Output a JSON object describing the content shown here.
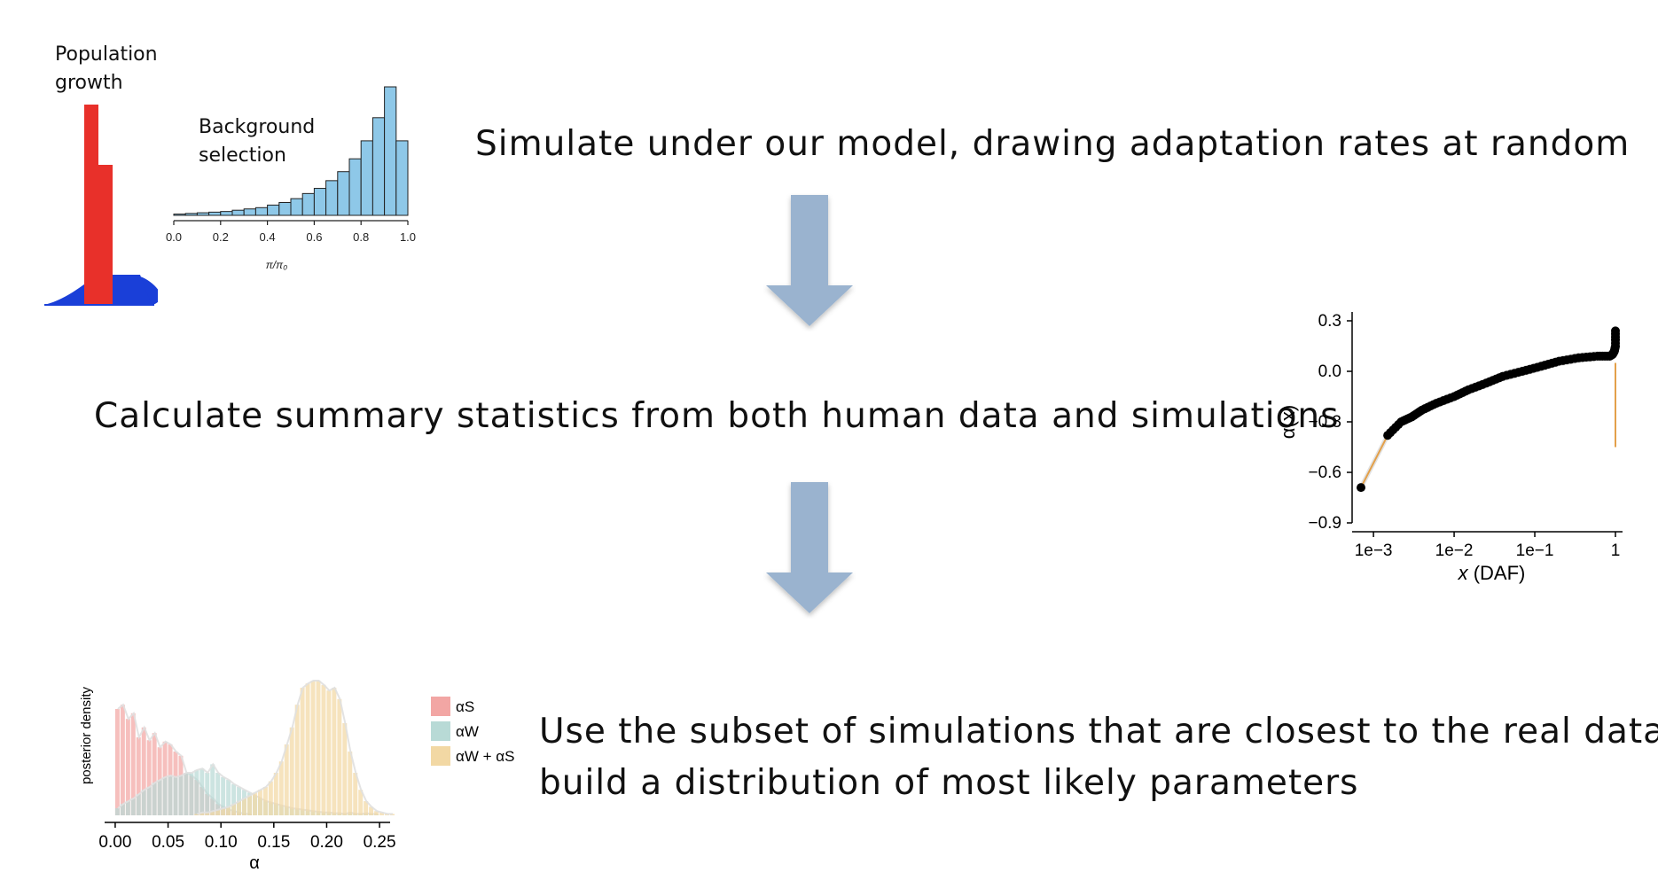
{
  "steps": {
    "simulate": "Simulate under our model, drawing adaptation rates at random",
    "calculate": "Calculate summary statistics from both human data and simulations",
    "subset_line1": "Use the subset of simulations that are closest to the real data to",
    "subset_line2": "build a distribution of most likely parameters"
  },
  "population_growth": {
    "label_line1": "Population",
    "label_line2": "growth",
    "colors": {
      "bar": "#e8302a",
      "base": "#1a3fd8"
    }
  },
  "colors": {
    "arrow": "#9ab3cf"
  },
  "chart_data": [
    {
      "type": "bar",
      "name_label_line1": "Background",
      "name_label_line2": "selection",
      "xlabel": "π/π₀",
      "xlim": [
        0.0,
        1.0
      ],
      "xticks": [
        "0.0",
        "0.2",
        "0.4",
        "0.6",
        "0.8",
        "1.0"
      ],
      "bin_width": 0.05,
      "values": [
        0.01,
        0.015,
        0.02,
        0.025,
        0.03,
        0.04,
        0.05,
        0.06,
        0.08,
        0.1,
        0.13,
        0.17,
        0.21,
        0.27,
        0.34,
        0.44,
        0.58,
        0.76,
        1.0,
        0.58
      ],
      "color": "#8ec8e8"
    },
    {
      "type": "scatter",
      "xlabel_italic": "x",
      "xlabel_rest": " (DAF)",
      "ylabel": "α(x)",
      "xscale": "log",
      "xlim": [
        0.0007,
        1.0
      ],
      "ylim": [
        -0.9,
        0.3
      ],
      "xticks": [
        "1e−3",
        "1e−2",
        "1e−1",
        "1"
      ],
      "xtick_values": [
        0.001,
        0.01,
        0.1,
        1
      ],
      "yticks": [
        "0.3",
        "0.0",
        "−0.3",
        "−0.6",
        "−0.9"
      ],
      "ytick_values": [
        0.3,
        0.0,
        -0.3,
        -0.6,
        -0.9
      ],
      "points": [
        [
          0.0007,
          -0.69
        ],
        [
          0.0015,
          -0.38
        ],
        [
          0.0022,
          -0.3
        ],
        [
          0.003,
          -0.27
        ],
        [
          0.004,
          -0.23
        ],
        [
          0.006,
          -0.19
        ],
        [
          0.01,
          -0.15
        ],
        [
          0.015,
          -0.11
        ],
        [
          0.025,
          -0.07
        ],
        [
          0.04,
          -0.03
        ],
        [
          0.07,
          0.0
        ],
        [
          0.12,
          0.03
        ],
        [
          0.2,
          0.06
        ],
        [
          0.35,
          0.08
        ],
        [
          0.6,
          0.09
        ],
        [
          0.85,
          0.09
        ],
        [
          0.92,
          0.1
        ],
        [
          0.97,
          0.12
        ],
        [
          1.0,
          0.15
        ],
        [
          1.0,
          0.24
        ]
      ],
      "curve_color": "#e3a04a"
    },
    {
      "type": "area",
      "xlabel": "α",
      "ylabel": "posterior density",
      "xlim": [
        -0.01,
        0.26
      ],
      "xticks": [
        "0.00",
        "0.05",
        "0.10",
        "0.15",
        "0.20",
        "0.25"
      ],
      "xtick_values": [
        0.0,
        0.05,
        0.1,
        0.15,
        0.2,
        0.25
      ],
      "bin_width": 0.005,
      "series": [
        {
          "name": "αS",
          "color": "#f2a6a4",
          "values": [
            0.75,
            0.78,
            0.68,
            0.72,
            0.55,
            0.62,
            0.53,
            0.58,
            0.48,
            0.52,
            0.5,
            0.45,
            0.42,
            0.3,
            0.28,
            0.25,
            0.2,
            0.15,
            0.12,
            0.08,
            0.06,
            0.04,
            0.03,
            0.02,
            0.01,
            0.01
          ]
        },
        {
          "name": "αW",
          "color": "#b8dad6",
          "values": [
            0.05,
            0.08,
            0.1,
            0.12,
            0.15,
            0.18,
            0.2,
            0.23,
            0.25,
            0.27,
            0.28,
            0.27,
            0.28,
            0.3,
            0.3,
            0.32,
            0.33,
            0.3,
            0.36,
            0.3,
            0.27,
            0.25,
            0.22,
            0.2,
            0.18,
            0.16,
            0.14,
            0.12,
            0.1,
            0.09,
            0.08,
            0.07,
            0.06,
            0.05,
            0.045,
            0.04,
            0.035,
            0.03,
            0.025,
            0.02,
            0.02,
            0.015,
            0.015,
            0.01,
            0.02,
            0.01,
            0.01,
            0.015,
            0.01,
            0.01
          ]
        },
        {
          "name": "αW + αS",
          "color": "#f2d8a4",
          "values": [
            0.01,
            0.02,
            0.02,
            0.03,
            0.04,
            0.05,
            0.06,
            0.08,
            0.1,
            0.12,
            0.14,
            0.16,
            0.18,
            0.2,
            0.24,
            0.3,
            0.38,
            0.5,
            0.62,
            0.78,
            0.9,
            0.93,
            0.95,
            0.95,
            0.92,
            0.88,
            0.9,
            0.82,
            0.65,
            0.45,
            0.3,
            0.18,
            0.1,
            0.06,
            0.03,
            0.02,
            0.01,
            0.01
          ]
        }
      ]
    }
  ]
}
